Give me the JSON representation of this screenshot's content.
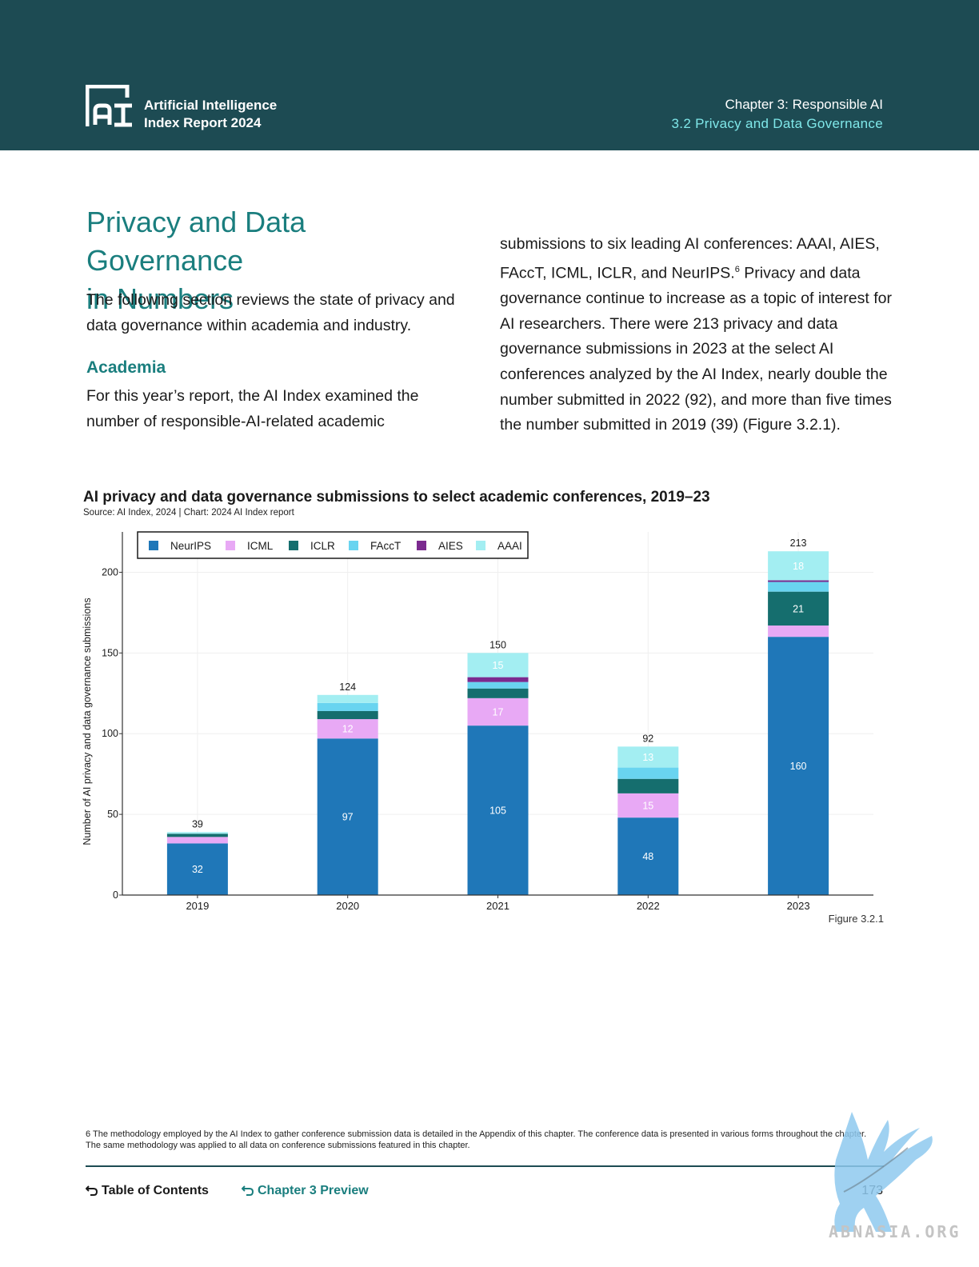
{
  "header": {
    "brand_line1": "Artificial Intelligence",
    "brand_line2": "Index Report 2024",
    "chapter": "Chapter 3: Responsible AI",
    "section": "3.2 Privacy and Data Governance"
  },
  "content": {
    "title_line1": "Privacy and Data Governance",
    "title_line2": "in Numbers",
    "lead": "The following section reviews the state of privacy and data governance within academia and industry.",
    "subhead": "Academia",
    "academia_text": "For this year’s report, the AI Index examined the number of responsible-AI-related academic",
    "right_col_a": "submissions to six leading AI conferences: AAAI, AIES, FAccT, ICML, ICLR, and NeurIPS.",
    "right_col_sup": "6",
    "right_col_b": " Privacy and data governance continue to increase as a topic of interest for AI researchers. There were 213 privacy and data governance submissions in 2023 at the select AI conferences analyzed by the AI Index, nearly double the number submitted in 2022 (92), and more than five times the number submitted in 2019 (39) (Figure 3.2.1)."
  },
  "chart": {
    "title": "AI privacy and data governance submissions to select academic conferences, 2019–23",
    "source": "Source: AI Index, 2024 | Chart: 2024 AI Index report",
    "figure_label": "Figure 3.2.1"
  },
  "chart_data": {
    "type": "bar",
    "stacked": true,
    "categories": [
      "2019",
      "2020",
      "2021",
      "2022",
      "2023"
    ],
    "ylabel": "Number of AI privacy and data governance submissions",
    "xlabel": "",
    "ylim": [
      0,
      225
    ],
    "yticks": [
      0,
      50,
      100,
      150,
      200
    ],
    "legend_position": "top-left",
    "totals": [
      39,
      124,
      150,
      92,
      213
    ],
    "series": [
      {
        "name": "NeurIPS",
        "color": "#1f77b8",
        "values": [
          32,
          97,
          105,
          48,
          160
        ],
        "labels": [
          "32",
          "97",
          "105",
          "48",
          "160"
        ]
      },
      {
        "name": "ICML",
        "color": "#e8a9f5",
        "values": [
          4,
          12,
          17,
          15,
          7
        ],
        "labels": [
          "",
          "12",
          "17",
          "15",
          ""
        ]
      },
      {
        "name": "ICLR",
        "color": "#156e6e",
        "values": [
          2,
          5,
          6,
          9,
          21
        ],
        "labels": [
          "",
          "",
          "",
          "",
          "21"
        ]
      },
      {
        "name": "FAccT",
        "color": "#69d4f0",
        "values": [
          0,
          5,
          4,
          7,
          6
        ],
        "labels": [
          "",
          "",
          "",
          "",
          ""
        ]
      },
      {
        "name": "AIES",
        "color": "#7b2a8f",
        "values": [
          0,
          0,
          3,
          0,
          1
        ],
        "labels": [
          "",
          "",
          "",
          "",
          ""
        ]
      },
      {
        "name": "AAAI",
        "color": "#a3eef2",
        "values": [
          1,
          5,
          15,
          13,
          18
        ],
        "labels": [
          "",
          "",
          "15",
          "13",
          "18"
        ]
      }
    ]
  },
  "footnote": {
    "num": "6",
    "text": " The methodology employed by the AI Index to gather conference submission data is detailed in the Appendix of this chapter. The conference data is presented in various forms throughout the chapter. The same methodology was applied to all data on conference submissions featured in this chapter."
  },
  "footer": {
    "toc": "Table of Contents",
    "chapter_preview": "Chapter 3 Preview",
    "page": "173"
  },
  "watermark": {
    "text": "ABNASIA.ORG"
  }
}
